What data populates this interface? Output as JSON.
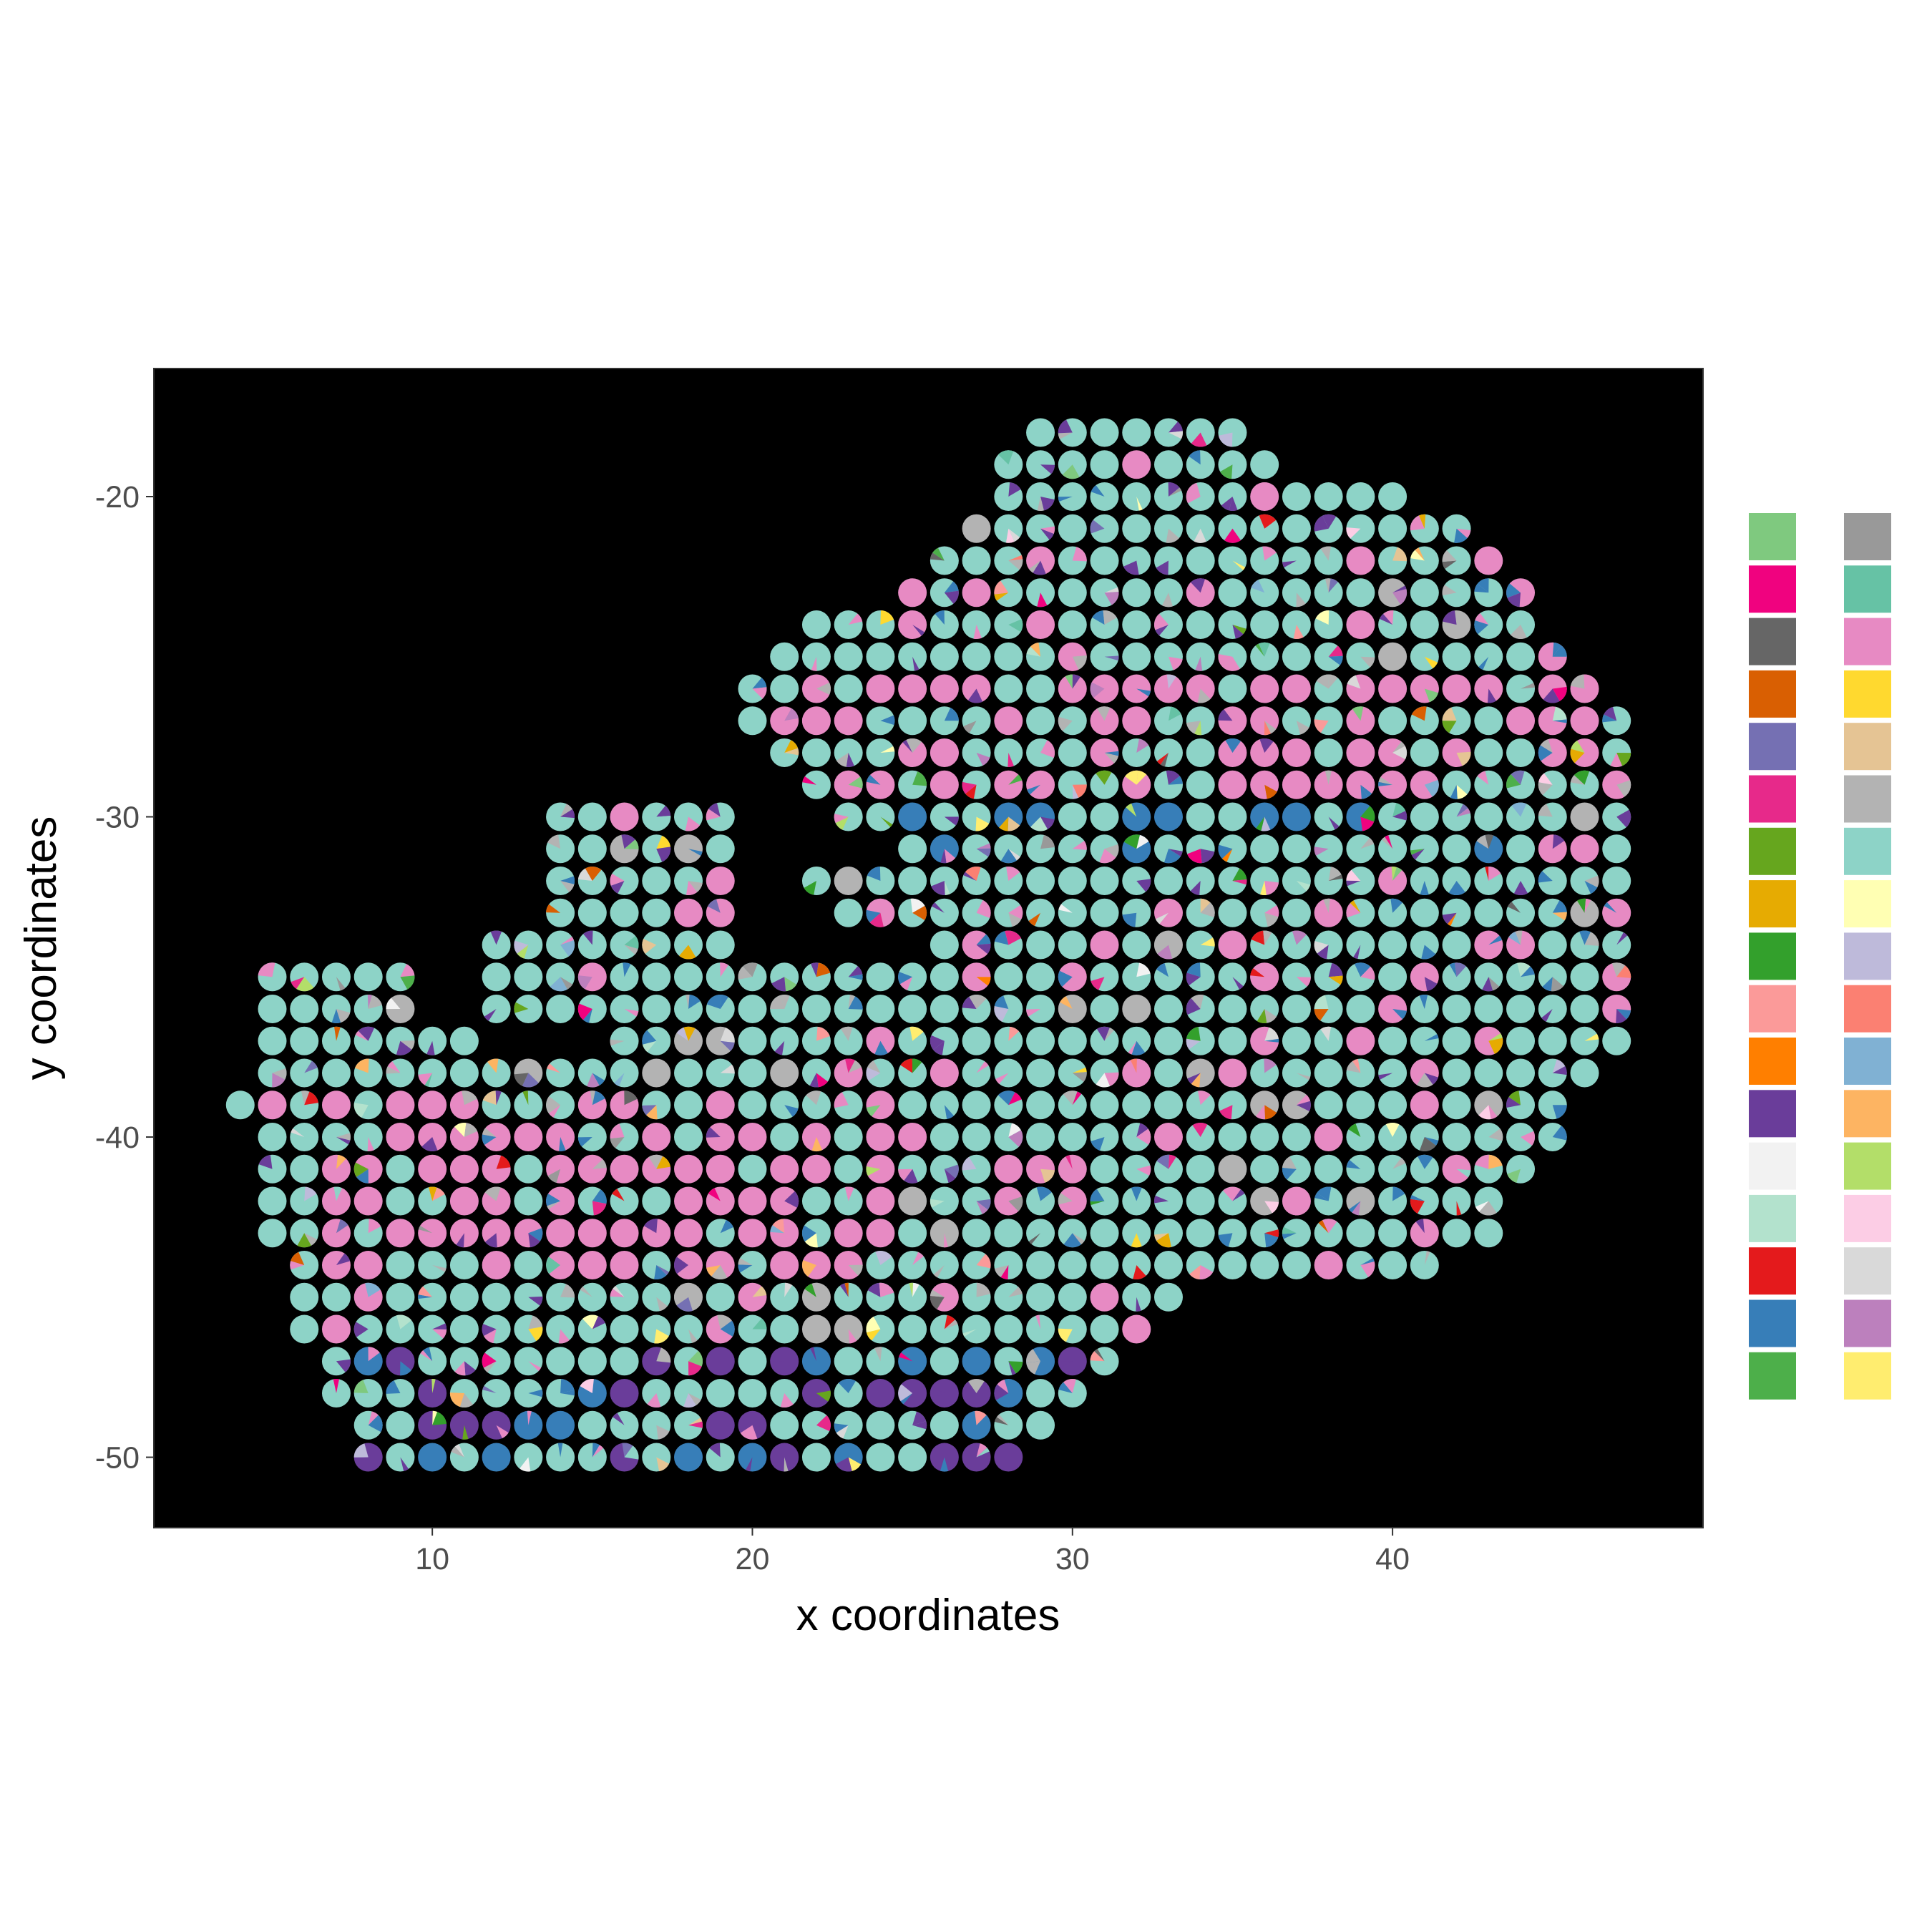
{
  "chart_data": {
    "type": "scatter",
    "subtype": "spatial-pie-scatter",
    "title": "",
    "xlabel": "x coordinates",
    "ylabel": "y coordinates",
    "xlim": [
      1.3,
      49.7
    ],
    "ylim": [
      -52.2,
      -16.0
    ],
    "x_ticks": [
      10,
      20,
      30,
      40
    ],
    "y_ticks": [
      -20,
      -30,
      -40,
      -50
    ],
    "x_tick_labels": [
      "10",
      "20",
      "30",
      "40"
    ],
    "y_tick_labels": [
      "-20",
      "-30",
      "-40",
      "-50"
    ],
    "panel_background": "#000000",
    "grid": false,
    "legend_position": "right",
    "legend_title": "",
    "legend_colors": [
      "#7fc97f",
      "#f0027f",
      "#666666",
      "#d95f02",
      "#7570b3",
      "#e7298a",
      "#66a61e",
      "#e6ab02",
      "#33a02c",
      "#fb9a99",
      "#ff7f00",
      "#6a3d9a",
      "#f2f2f2",
      "#b3e2cd",
      "#e41a1c",
      "#377eb8",
      "#4daf4a",
      "#999999",
      "#66c2a5",
      "#e78ac3",
      "#ffd92f",
      "#e5c494",
      "#b3b3b3",
      "#8dd3c7",
      "#ffffb3",
      "#bebada",
      "#fb8072",
      "#80b1d3",
      "#fdb462",
      "#b3de69",
      "#fccde5",
      "#d9d9d9",
      "#bc80bd",
      "#ffed6f"
    ],
    "dominant_colors": {
      "teal": "#8dd3c7",
      "pink": "#e78ac3",
      "blue": "#377eb8",
      "purple": "#6a3d9a",
      "grey": "#b3b3b3"
    },
    "spots_by_row": [
      {
        "y": -18,
        "x_range": [
          29,
          35
        ]
      },
      {
        "y": -19,
        "x_range": [
          28,
          36
        ]
      },
      {
        "y": -20,
        "x_range": [
          28,
          40
        ]
      },
      {
        "y": -21,
        "x_range": [
          27,
          42
        ]
      },
      {
        "y": -22,
        "x_range": [
          26,
          43
        ]
      },
      {
        "y": -23,
        "x_range": [
          25,
          44
        ]
      },
      {
        "y": -24,
        "x_range": [
          22,
          44
        ]
      },
      {
        "y": -25,
        "x_range": [
          21,
          45
        ]
      },
      {
        "y": -26,
        "x_range": [
          20,
          46
        ]
      },
      {
        "y": -27,
        "x_range": [
          20,
          47
        ]
      },
      {
        "y": -28,
        "x_range": [
          21,
          47
        ]
      },
      {
        "y": -29,
        "x_range": [
          22,
          47
        ]
      },
      {
        "y": -30,
        "x_range": [
          14,
          47
        ],
        "gap": [
          20,
          22
        ]
      },
      {
        "y": -31,
        "x_range": [
          14,
          47
        ],
        "gap": [
          20,
          24
        ]
      },
      {
        "y": -32,
        "x_range": [
          14,
          47
        ],
        "gap": [
          20,
          21
        ]
      },
      {
        "y": -33,
        "x_range": [
          14,
          47
        ],
        "gap": [
          20,
          22
        ]
      },
      {
        "y": -34,
        "x_range": [
          12,
          47
        ],
        "gap": [
          20,
          25
        ]
      },
      {
        "y": -35,
        "x_range": [
          5,
          47
        ],
        "gap": [
          10,
          11
        ]
      },
      {
        "y": -36,
        "x_range": [
          5,
          47
        ],
        "gap": [
          10,
          11
        ]
      },
      {
        "y": -37,
        "x_range": [
          5,
          47
        ],
        "gap": [
          12,
          15
        ]
      },
      {
        "y": -38,
        "x_range": [
          5,
          46
        ]
      },
      {
        "y": -39,
        "x_range": [
          4,
          45
        ]
      },
      {
        "y": -40,
        "x_range": [
          5,
          45
        ]
      },
      {
        "y": -41,
        "x_range": [
          5,
          44
        ]
      },
      {
        "y": -42,
        "x_range": [
          5,
          43
        ]
      },
      {
        "y": -43,
        "x_range": [
          5,
          43
        ]
      },
      {
        "y": -44,
        "x_range": [
          6,
          41
        ]
      },
      {
        "y": -45,
        "x_range": [
          6,
          33
        ]
      },
      {
        "y": -46,
        "x_range": [
          6,
          32
        ]
      },
      {
        "y": -47,
        "x_range": [
          7,
          31
        ]
      },
      {
        "y": -48,
        "x_range": [
          7,
          30
        ]
      },
      {
        "y": -49,
        "x_range": [
          8,
          29
        ]
      },
      {
        "y": -50,
        "x_range": [
          8,
          28
        ]
      }
    ]
  }
}
